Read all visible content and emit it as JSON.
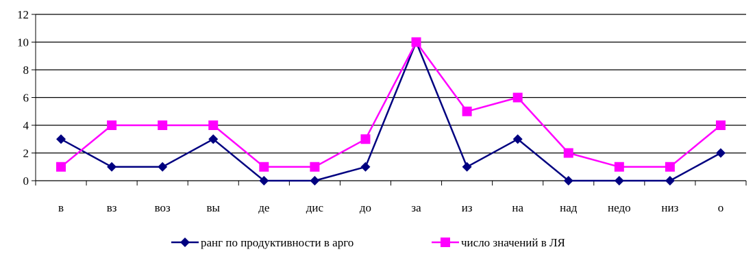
{
  "chart_data": {
    "type": "line",
    "categories": [
      "в",
      "вз",
      "воз",
      "вы",
      "де",
      "дис",
      "до",
      "за",
      "из",
      "на",
      "над",
      "недо",
      "низ",
      "о"
    ],
    "series": [
      {
        "name": "ранг по продуктивности в арго",
        "color": "#000080",
        "marker": "diamond",
        "values": [
          3,
          1,
          1,
          3,
          0,
          0,
          1,
          10,
          1,
          3,
          0,
          0,
          0,
          2
        ]
      },
      {
        "name": "число значений в ЛЯ",
        "color": "#FF00FF",
        "marker": "square",
        "values": [
          1,
          4,
          4,
          4,
          1,
          1,
          3,
          10,
          5,
          6,
          2,
          1,
          1,
          4
        ]
      }
    ],
    "yticks": [
      "0",
      "2",
      "4",
      "6",
      "8",
      "10",
      "12"
    ],
    "ylim": [
      0,
      12
    ],
    "grid": true,
    "legend": "bottom"
  }
}
